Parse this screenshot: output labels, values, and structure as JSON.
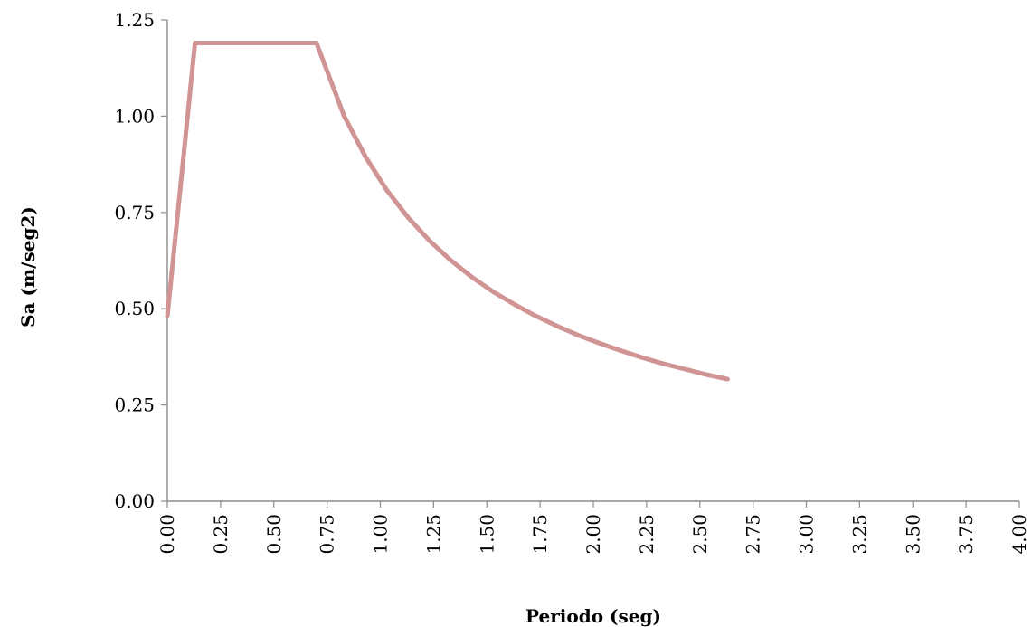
{
  "chart_data": {
    "type": "line",
    "title": "",
    "xlabel": "Periodo (seg)",
    "ylabel": "Sa (m/seg2)",
    "xlim": [
      0,
      4
    ],
    "ylim": [
      0,
      1.25
    ],
    "x_ticks": [
      "0.00",
      "0.25",
      "0.50",
      "0.75",
      "1.00",
      "1.25",
      "1.50",
      "1.75",
      "2.00",
      "2.25",
      "2.50",
      "2.75",
      "3.00",
      "3.25",
      "3.50",
      "3.75",
      "4.00"
    ],
    "y_ticks": [
      "0.00",
      "0.25",
      "0.50",
      "0.75",
      "1.00",
      "1.25"
    ],
    "grid": false,
    "legend": "none",
    "series": [
      {
        "color": "#d09494",
        "x": [
          0.0,
          0.13,
          0.7,
          0.83,
          0.93,
          1.03,
          1.13,
          1.23,
          1.33,
          1.43,
          1.53,
          1.63,
          1.73,
          1.83,
          1.93,
          2.03,
          2.13,
          2.23,
          2.33,
          2.43,
          2.53,
          2.63
        ],
        "y": [
          0.48,
          1.19,
          1.19,
          1.0,
          0.895,
          0.808,
          0.737,
          0.677,
          0.626,
          0.582,
          0.544,
          0.511,
          0.481,
          0.455,
          0.431,
          0.41,
          0.391,
          0.373,
          0.357,
          0.343,
          0.329,
          0.317
        ]
      }
    ]
  }
}
